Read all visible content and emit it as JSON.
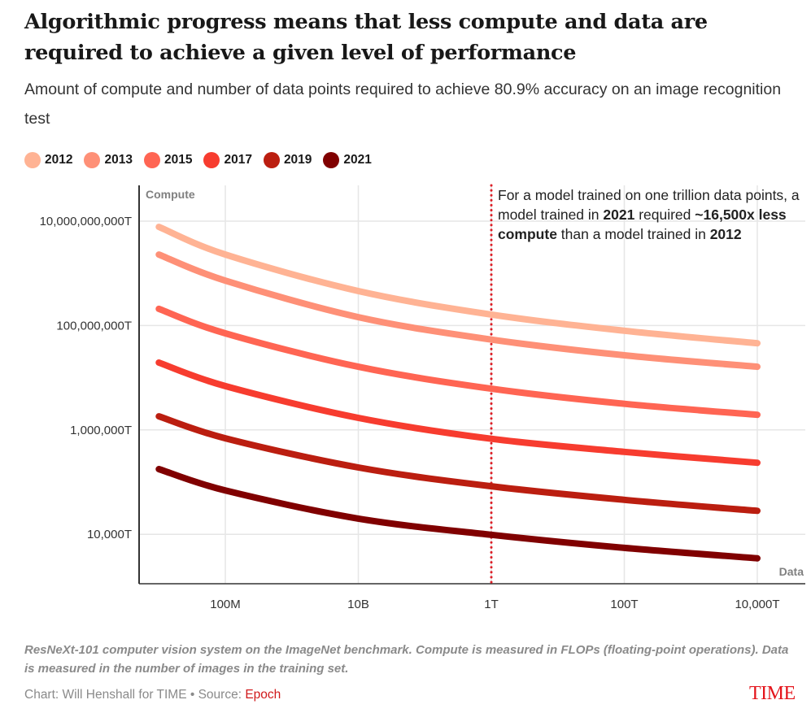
{
  "header": {
    "title": "Algorithmic progress means that less compute and data are required to achieve a given level of performance",
    "subtitle": "Amount of compute and number of data points required to achieve 80.9% accuracy on an image recognition test"
  },
  "annotation": {
    "part1": "For a model trained on one trillion data points, a model trained in ",
    "bold1": "2021",
    "part2": " required ",
    "bold2": "~16,500x less compute",
    "part3": " than a model trained in ",
    "bold3": "2012"
  },
  "footer": {
    "note": "ResNeXt-101 computer vision system on the ImageNet benchmark. Compute is measured in FLOPs (floating-point operations). Data is measured in the number of images in the training set.",
    "credit_prefix": "Chart: Will Henshall for TIME • Source: ",
    "source_name": "Epoch",
    "logo": "TIME"
  },
  "chart_data": {
    "type": "line",
    "title": "Algorithmic progress means that less compute and data are required to achieve a given level of performance",
    "xlabel": "Data",
    "ylabel": "Compute",
    "x_scale": "log",
    "y_scale": "log",
    "xlim": [
      5000000,
      60000000000000000
    ],
    "ylim": [
      1000,
      30000000000
    ],
    "x_ticks": [
      {
        "value": 100000000,
        "label": "100M"
      },
      {
        "value": 10000000000,
        "label": "10B"
      },
      {
        "value": 1000000000000,
        "label": "1T"
      },
      {
        "value": 100000000000000,
        "label": "100T"
      },
      {
        "value": 10000000000000000,
        "label": "10,000T"
      }
    ],
    "y_ticks": [
      {
        "value": 10000000000,
        "label": "10,000,000,000T"
      },
      {
        "value": 100000000,
        "label": "100,000,000T"
      },
      {
        "value": 1000000,
        "label": "1,000,000T"
      },
      {
        "value": 10000,
        "label": "10,000T"
      }
    ],
    "grid": true,
    "legend_position": "top-left",
    "x": [
      10000000,
      100000000,
      10000000000,
      1000000000000,
      100000000000000,
      10000000000000000
    ],
    "x_unit": "images",
    "y_unit": "T FLOPs (log10 values)",
    "series": [
      {
        "name": "2012",
        "color": "#ffb394",
        "log10_values": [
          9.89,
          9.36,
          8.66,
          8.21,
          7.9,
          7.66
        ]
      },
      {
        "name": "2013",
        "color": "#fe9077",
        "log10_values": [
          9.36,
          8.86,
          8.16,
          7.73,
          7.43,
          7.21
        ]
      },
      {
        "name": "2015",
        "color": "#ff6553",
        "log10_values": [
          8.32,
          7.85,
          7.21,
          6.79,
          6.5,
          6.29
        ]
      },
      {
        "name": "2017",
        "color": "#f73c2f",
        "log10_values": [
          7.29,
          6.84,
          6.23,
          5.83,
          5.58,
          5.37
        ]
      },
      {
        "name": "2019",
        "color": "#bb1e10",
        "log10_values": [
          6.26,
          5.84,
          5.28,
          4.92,
          4.66,
          4.45
        ]
      },
      {
        "name": "2021",
        "color": "#800000",
        "log10_values": [
          5.25,
          4.84,
          4.3,
          3.99,
          3.74,
          3.54
        ]
      }
    ],
    "reference_line": {
      "x": 1000000000000,
      "label": "1T",
      "style": "dotted",
      "color": "#dd1e26"
    }
  }
}
